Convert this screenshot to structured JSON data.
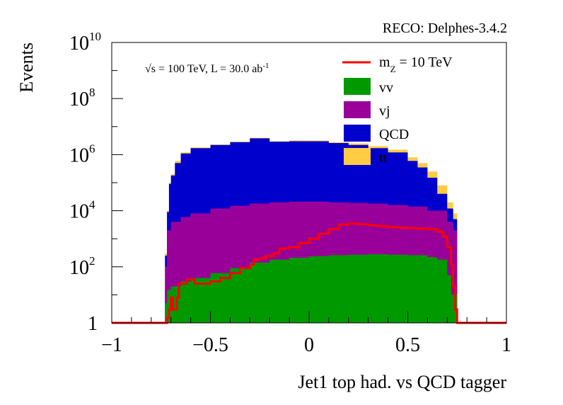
{
  "header": {
    "reco_label": "RECO: Delphes-3.4.2",
    "energy_prefix": "s",
    "energy_label": " = 100 TeV, L = 30.0 ab",
    "energy_label_sup": "-1"
  },
  "chart_data": {
    "type": "histogram-stacked",
    "xlabel": "Jet1 top had. vs QCD tagger",
    "ylabel": "Events",
    "xlim": [
      -1,
      1
    ],
    "ylim": [
      1,
      10000000000
    ],
    "yscale": "log",
    "x_ticks": [
      "−1",
      "−0.5",
      "0",
      "0.5",
      "1"
    ],
    "y_ticks": [
      {
        "base": "1",
        "exp": ""
      },
      {
        "base": "10",
        "exp": "2"
      },
      {
        "base": "10",
        "exp": "4"
      },
      {
        "base": "10",
        "exp": "6"
      },
      {
        "base": "10",
        "exp": "8"
      },
      {
        "base": "10",
        "exp": "10"
      }
    ],
    "legend_position": "top-right",
    "series": [
      {
        "name": "tt",
        "color": "#ffcc44"
      },
      {
        "name": "QCD",
        "color": "#0000cc"
      },
      {
        "name": "vj",
        "color": "#990099"
      },
      {
        "name": "vv",
        "color": "#009900"
      }
    ],
    "signal": {
      "name_base": "m",
      "name_sub": "Z",
      "name_rest": " = 10 TeV",
      "color": "#ff0000"
    },
    "total_points": [
      [
        -0.74,
        1
      ],
      [
        -0.73,
        300
      ],
      [
        -0.72,
        10000
      ],
      [
        -0.71,
        100000
      ],
      [
        -0.7,
        200000
      ],
      [
        -0.68,
        600000
      ],
      [
        -0.65,
        1200000
      ],
      [
        -0.6,
        1800000
      ],
      [
        -0.5,
        2300000
      ],
      [
        -0.4,
        2900000
      ],
      [
        -0.3,
        4000000
      ],
      [
        -0.2,
        3000000
      ],
      [
        -0.1,
        3200000
      ],
      [
        0.0,
        3200000
      ],
      [
        0.1,
        2800000
      ],
      [
        0.2,
        2500000
      ],
      [
        0.3,
        2000000
      ],
      [
        0.4,
        1500000
      ],
      [
        0.5,
        800000
      ],
      [
        0.55,
        500000
      ],
      [
        0.6,
        250000
      ],
      [
        0.65,
        80000
      ],
      [
        0.7,
        20000
      ],
      [
        0.73,
        8000
      ],
      [
        0.75,
        1
      ]
    ],
    "qcd_top_points": [
      [
        -0.74,
        1
      ],
      [
        -0.73,
        250
      ],
      [
        -0.72,
        9000
      ],
      [
        -0.71,
        90000
      ],
      [
        -0.7,
        180000
      ],
      [
        -0.68,
        500000
      ],
      [
        -0.65,
        1100000
      ],
      [
        -0.6,
        1700000
      ],
      [
        -0.5,
        2200000
      ],
      [
        -0.4,
        2800000
      ],
      [
        -0.3,
        3800000
      ],
      [
        -0.2,
        2900000
      ],
      [
        -0.1,
        3000000
      ],
      [
        0.0,
        3000000
      ],
      [
        0.1,
        2600000
      ],
      [
        0.2,
        2200000
      ],
      [
        0.3,
        1700000
      ],
      [
        0.4,
        1200000
      ],
      [
        0.5,
        600000
      ],
      [
        0.55,
        350000
      ],
      [
        0.6,
        150000
      ],
      [
        0.65,
        40000
      ],
      [
        0.7,
        12000
      ],
      [
        0.73,
        5000
      ],
      [
        0.75,
        1
      ]
    ],
    "vj_top_points": [
      [
        -0.74,
        1
      ],
      [
        -0.73,
        100
      ],
      [
        -0.72,
        2000
      ],
      [
        -0.7,
        4000
      ],
      [
        -0.65,
        6000
      ],
      [
        -0.6,
        8000
      ],
      [
        -0.5,
        12000
      ],
      [
        -0.4,
        15000
      ],
      [
        -0.3,
        18000
      ],
      [
        -0.2,
        20000
      ],
      [
        -0.1,
        21000
      ],
      [
        0.0,
        21000
      ],
      [
        0.1,
        20000
      ],
      [
        0.2,
        19000
      ],
      [
        0.3,
        18000
      ],
      [
        0.4,
        16000
      ],
      [
        0.5,
        14000
      ],
      [
        0.6,
        10000
      ],
      [
        0.7,
        4000
      ],
      [
        0.73,
        2000
      ],
      [
        0.75,
        1
      ]
    ],
    "vv_top_points": [
      [
        -0.74,
        1
      ],
      [
        -0.73,
        5
      ],
      [
        -0.72,
        15
      ],
      [
        -0.7,
        20
      ],
      [
        -0.65,
        30
      ],
      [
        -0.6,
        40
      ],
      [
        -0.5,
        60
      ],
      [
        -0.4,
        90
      ],
      [
        -0.3,
        140
      ],
      [
        -0.2,
        180
      ],
      [
        -0.1,
        210
      ],
      [
        0.0,
        240
      ],
      [
        0.1,
        260
      ],
      [
        0.2,
        270
      ],
      [
        0.3,
        280
      ],
      [
        0.4,
        270
      ],
      [
        0.5,
        260
      ],
      [
        0.6,
        220
      ],
      [
        0.65,
        180
      ],
      [
        0.7,
        50
      ],
      [
        0.72,
        10
      ],
      [
        0.75,
        1
      ]
    ],
    "signal_points": [
      [
        -0.74,
        1
      ],
      [
        -0.72,
        1.5
      ],
      [
        -0.71,
        3
      ],
      [
        -0.7,
        8
      ],
      [
        -0.69,
        3
      ],
      [
        -0.67,
        8
      ],
      [
        -0.66,
        25
      ],
      [
        -0.62,
        35
      ],
      [
        -0.58,
        25
      ],
      [
        -0.55,
        25
      ],
      [
        -0.5,
        30
      ],
      [
        -0.45,
        40
      ],
      [
        -0.4,
        60
      ],
      [
        -0.35,
        90
      ],
      [
        -0.3,
        120
      ],
      [
        -0.28,
        180
      ],
      [
        -0.25,
        200
      ],
      [
        -0.22,
        240
      ],
      [
        -0.18,
        300
      ],
      [
        -0.15,
        450
      ],
      [
        -0.1,
        500
      ],
      [
        -0.05,
        700
      ],
      [
        0.0,
        1000
      ],
      [
        0.05,
        1500
      ],
      [
        0.1,
        2200
      ],
      [
        0.15,
        3200
      ],
      [
        0.2,
        3500
      ],
      [
        0.25,
        3300
      ],
      [
        0.3,
        3000
      ],
      [
        0.35,
        2800
      ],
      [
        0.4,
        2600
      ],
      [
        0.45,
        2500
      ],
      [
        0.5,
        2400
      ],
      [
        0.55,
        2300
      ],
      [
        0.6,
        2200
      ],
      [
        0.65,
        1800
      ],
      [
        0.68,
        1200
      ],
      [
        0.7,
        500
      ],
      [
        0.72,
        120
      ],
      [
        0.73,
        20
      ],
      [
        0.74,
        3
      ],
      [
        0.75,
        1
      ]
    ]
  }
}
